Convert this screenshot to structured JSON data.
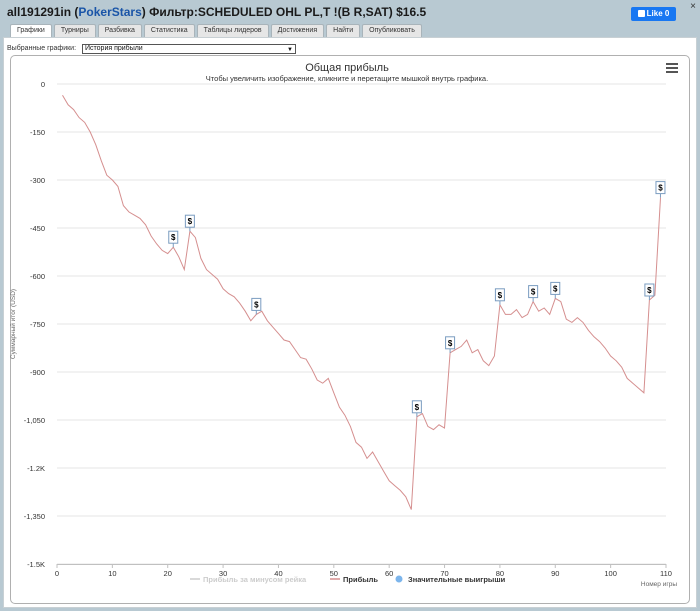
{
  "header": {
    "player": "all191291in",
    "paren_open": " (",
    "site": "PokerStars",
    "filter": ") Фильтр:SCHEDULED OHL PL,T !(B R,SAT) $16.5",
    "like_label": "Like 0",
    "close_glyph": "×"
  },
  "tabs": [
    {
      "label": "Графики",
      "active": true
    },
    {
      "label": "Турниры",
      "active": false
    },
    {
      "label": "Разбивка",
      "active": false
    },
    {
      "label": "Статистика",
      "active": false
    },
    {
      "label": "Таблицы лидеров",
      "active": false
    },
    {
      "label": "Достижения",
      "active": false
    },
    {
      "label": "Найти",
      "active": false
    },
    {
      "label": "Опубликовать",
      "active": false
    }
  ],
  "selector": {
    "label": "Выбранные графики:",
    "value": "История прибыли"
  },
  "colors": {
    "profit_line": "#d58f8f",
    "bonus_line": "#cccccc",
    "big_win_marker": "#7cb5ec",
    "grid": "#e6e6e6"
  },
  "icons": {
    "menu": "hamburger-icon",
    "flag": "dollar-flag-icon",
    "like": "facebook-like-icon"
  },
  "chart_data": {
    "type": "line",
    "title": "Общая прибыль",
    "subtitle": "Чтобы увеличить изображение, кликните и перетащите мышкой внутрь графика.",
    "xlabel": "Номер игры",
    "ylabel": "Суммарный итог (USD)",
    "xlim": [
      0,
      110
    ],
    "ylim": [
      -1500,
      0
    ],
    "xticks": [
      0,
      10,
      20,
      30,
      40,
      50,
      60,
      70,
      80,
      90,
      100,
      110
    ],
    "yticks": [
      0,
      -150,
      -300,
      -450,
      -600,
      -750,
      -900,
      -1050,
      -1200,
      -1350,
      -1500
    ],
    "ytick_labels": [
      "0",
      "-150",
      "-300",
      "-450",
      "-600",
      "-750",
      "-900",
      "-1,050",
      "-1.2K",
      "-1,350",
      "-1.5K"
    ],
    "grid": true,
    "legend_position": "bottom",
    "legend": [
      {
        "name": "Прибыль за минусом рейка",
        "color": "#cccccc",
        "kind": "line"
      },
      {
        "name": "Прибыль",
        "color": "#d58f8f",
        "kind": "line"
      },
      {
        "name": "Значительные выигрыши",
        "color": "#7cb5ec",
        "kind": "dot"
      }
    ],
    "series": [
      {
        "name": "Прибыль",
        "x": [
          1,
          2,
          3,
          4,
          5,
          6,
          7,
          8,
          9,
          10,
          11,
          12,
          13,
          14,
          15,
          16,
          17,
          18,
          19,
          20,
          21,
          22,
          23,
          24,
          25,
          26,
          27,
          28,
          29,
          30,
          31,
          32,
          33,
          34,
          35,
          36,
          37,
          38,
          39,
          40,
          41,
          42,
          43,
          44,
          45,
          46,
          47,
          48,
          49,
          50,
          51,
          52,
          53,
          54,
          55,
          56,
          57,
          58,
          59,
          60,
          61,
          62,
          63,
          64,
          65,
          66,
          67,
          68,
          69,
          70,
          71,
          72,
          73,
          74,
          75,
          76,
          77,
          78,
          79,
          80,
          81,
          82,
          83,
          84,
          85,
          86,
          87,
          88,
          89,
          90,
          91,
          92,
          93,
          94,
          95,
          96,
          97,
          98,
          99,
          100,
          101,
          102,
          103,
          104,
          105,
          106,
          107,
          108,
          109
        ],
        "y": [
          -35,
          -65,
          -80,
          -105,
          -120,
          -150,
          -190,
          -240,
          -285,
          -300,
          -320,
          -380,
          -400,
          -410,
          -420,
          -440,
          -475,
          -500,
          -520,
          -530,
          -510,
          -540,
          -580,
          -460,
          -480,
          -545,
          -580,
          -595,
          -610,
          -640,
          -655,
          -665,
          -685,
          -710,
          -740,
          -720,
          -710,
          -740,
          -760,
          -780,
          -800,
          -805,
          -830,
          -855,
          -860,
          -890,
          -925,
          -935,
          -920,
          -965,
          -1010,
          -1035,
          -1070,
          -1120,
          -1135,
          -1170,
          -1150,
          -1180,
          -1210,
          -1240,
          -1255,
          -1270,
          -1290,
          -1330,
          -1040,
          -1030,
          -1070,
          -1080,
          -1065,
          -1075,
          -840,
          -830,
          -820,
          -800,
          -840,
          -830,
          -865,
          -880,
          -850,
          -690,
          -720,
          -720,
          -705,
          -730,
          -720,
          -680,
          -710,
          -700,
          -720,
          -670,
          -680,
          -735,
          -745,
          -730,
          -745,
          -770,
          -790,
          -805,
          -825,
          -850,
          -865,
          -885,
          -920,
          -935,
          -950,
          -965,
          -675,
          -660,
          -355
        ]
      }
    ],
    "big_wins": [
      {
        "x": 21,
        "y": -510
      },
      {
        "x": 24,
        "y": -460
      },
      {
        "x": 36,
        "y": -720
      },
      {
        "x": 65,
        "y": -1040
      },
      {
        "x": 71,
        "y": -840
      },
      {
        "x": 80,
        "y": -690
      },
      {
        "x": 86,
        "y": -680
      },
      {
        "x": 90,
        "y": -670
      },
      {
        "x": 107,
        "y": -675
      },
      {
        "x": 109,
        "y": -355
      }
    ],
    "marker_label": "$"
  }
}
